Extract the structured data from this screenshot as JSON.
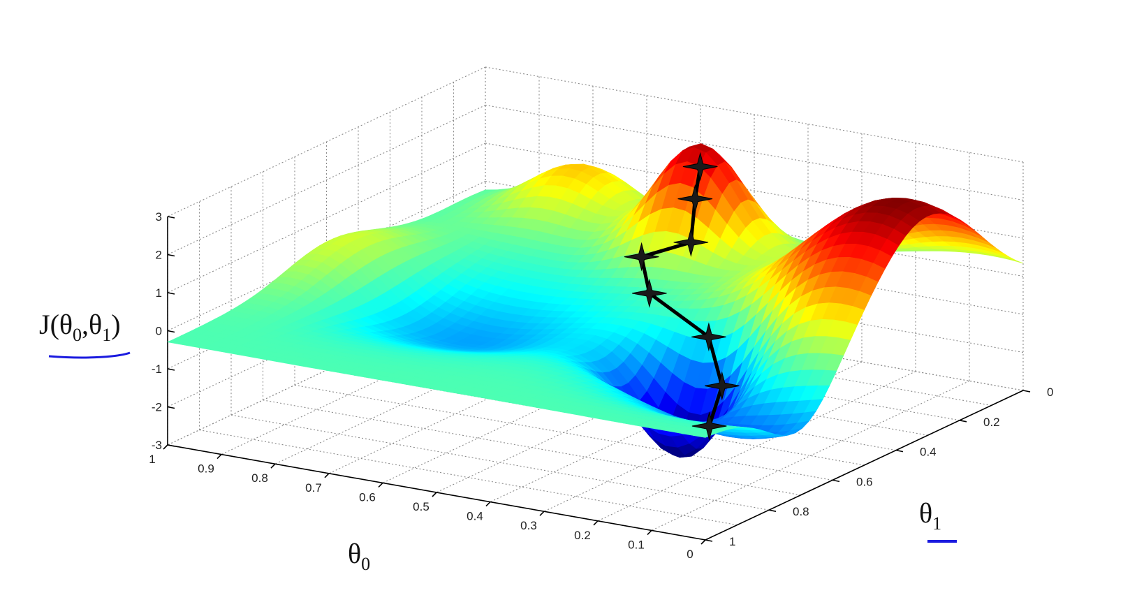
{
  "chart_data": {
    "type": "surface",
    "title": "",
    "z_label": {
      "main": "J(θ",
      "sub0": "0",
      "sep": ",θ",
      "sub1": "1",
      "close": ")"
    },
    "x_label": {
      "main": "θ",
      "sub": "0"
    },
    "y_label": {
      "main": "θ",
      "sub": "1"
    },
    "z_ticks": [
      "3",
      "2",
      "1",
      "0",
      "-1",
      "-2",
      "-3"
    ],
    "x_ticks": [
      "1",
      "0.9",
      "0.8",
      "0.7",
      "0.6",
      "0.5",
      "0.4",
      "0.3",
      "0.2",
      "0.1",
      "0"
    ],
    "y_ticks": [
      "0",
      "0.2",
      "0.4",
      "0.6",
      "0.8",
      "1"
    ],
    "xlim": [
      0,
      1
    ],
    "ylim": [
      0,
      1
    ],
    "zlim": [
      -3,
      3
    ],
    "colormap": "jet",
    "grid": true,
    "path_color": "#000000",
    "annotation_color": "#1a1adf",
    "descent_path": [
      {
        "theta0": 0.5,
        "theta1": 0.17,
        "J": 2.3
      },
      {
        "theta0": 0.48,
        "theta1": 0.22,
        "J": 1.7
      },
      {
        "theta0": 0.47,
        "theta1": 0.25,
        "J": 0.7
      },
      {
        "theta0": 0.55,
        "theta1": 0.27,
        "J": 0.2
      },
      {
        "theta0": 0.5,
        "theta1": 0.33,
        "J": -0.4
      },
      {
        "theta0": 0.36,
        "theta1": 0.38,
        "J": -1.0
      },
      {
        "theta0": 0.3,
        "theta1": 0.44,
        "J": -1.9
      },
      {
        "theta0": 0.3,
        "theta1": 0.48,
        "J": -2.8
      }
    ]
  }
}
